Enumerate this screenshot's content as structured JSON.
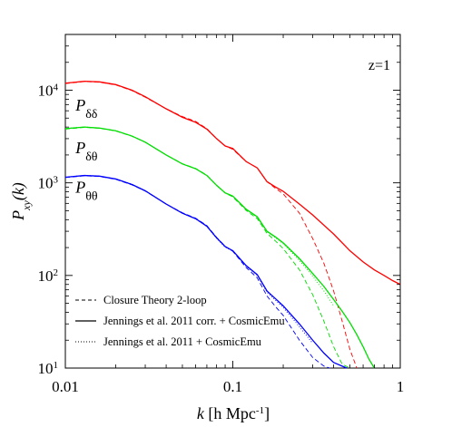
{
  "chart_data": {
    "type": "line",
    "title": "",
    "annotation": "z=1",
    "xlabel": {
      "italic": "k",
      "rest": " [h Mpc",
      "sup": "-1",
      "end": "]"
    },
    "ylabel": {
      "italic": "P",
      "sub": "xy",
      "rest": "(k)"
    },
    "x_scale": "log",
    "y_scale": "log",
    "xlim": [
      0.01,
      1
    ],
    "ylim": [
      10,
      40000
    ],
    "x_ticks": [
      {
        "value": 0.01,
        "label": "0.01"
      },
      {
        "value": 0.1,
        "label": "0.1"
      },
      {
        "value": 1,
        "label": "1"
      }
    ],
    "y_ticks": [
      {
        "value": 10,
        "base": "10",
        "exp": "1"
      },
      {
        "value": 100,
        "base": "10",
        "exp": "2"
      },
      {
        "value": 1000,
        "base": "10",
        "exp": "3"
      },
      {
        "value": 10000,
        "base": "10",
        "exp": "4"
      }
    ],
    "grid": false,
    "legend_position": "bottom-left",
    "legend": [
      {
        "label": "Closure Theory 2-loop",
        "style": "dashed"
      },
      {
        "label": "Jennings et al. 2011 corr. + CosmicEmu",
        "style": "solid"
      },
      {
        "label": "Jennings et al. 2011 + CosmicEmu",
        "style": "dotted"
      }
    ],
    "series_labels": [
      {
        "main": "P",
        "sub": "δδ",
        "color": "#ff0000",
        "at_k": 0.0115,
        "at_p": 6000
      },
      {
        "main": "P",
        "sub": "δθ",
        "color": "#00dd00",
        "at_k": 0.0115,
        "at_p": 2100
      },
      {
        "main": "P",
        "sub": "θθ",
        "color": "#0000ff",
        "at_k": 0.0115,
        "at_p": 780
      }
    ],
    "series": [
      {
        "group": "Pdd",
        "style": "solid",
        "color": "#ff0000",
        "x": [
          0.01,
          0.013,
          0.016,
          0.02,
          0.025,
          0.03,
          0.04,
          0.05,
          0.06,
          0.07,
          0.08,
          0.09,
          0.1,
          0.12,
          0.14,
          0.16,
          0.18,
          0.2,
          0.25,
          0.3,
          0.4,
          0.5,
          0.6,
          0.7,
          0.8,
          0.9,
          1.0
        ],
        "y": [
          11900,
          12500,
          12300,
          11500,
          10000,
          8500,
          6300,
          5100,
          4500,
          3800,
          3000,
          2500,
          2350,
          1700,
          1450,
          1030,
          900,
          810,
          590,
          450,
          280,
          185,
          140,
          115,
          100,
          88,
          80
        ]
      },
      {
        "group": "Pdd",
        "style": "dashed",
        "color": "#ff0000",
        "x": [
          0.01,
          0.013,
          0.016,
          0.02,
          0.025,
          0.03,
          0.04,
          0.05,
          0.06,
          0.07,
          0.08,
          0.09,
          0.1,
          0.12,
          0.14,
          0.16,
          0.18,
          0.2,
          0.25,
          0.3,
          0.35,
          0.4,
          0.45,
          0.5,
          0.55
        ],
        "y": [
          11800,
          12400,
          12200,
          11400,
          9900,
          8400,
          6300,
          5200,
          4600,
          3850,
          3000,
          2500,
          2300,
          1700,
          1450,
          1030,
          870,
          760,
          470,
          250,
          135,
          68,
          32,
          16,
          10
        ]
      },
      {
        "group": "Pdd",
        "style": "dotted",
        "color": "#ff0000",
        "x": [
          0.01,
          0.013,
          0.016,
          0.02,
          0.025,
          0.03,
          0.04,
          0.05,
          0.06,
          0.07,
          0.08,
          0.09,
          0.1,
          0.12,
          0.14,
          0.16,
          0.18,
          0.2,
          0.25,
          0.3
        ],
        "y": [
          11900,
          12500,
          12300,
          11500,
          10000,
          8500,
          6300,
          5100,
          4500,
          3800,
          3000,
          2500,
          2350,
          1700,
          1450,
          1030,
          900,
          810,
          590,
          450
        ]
      },
      {
        "group": "Pdt",
        "style": "solid",
        "color": "#00dd00",
        "x": [
          0.01,
          0.013,
          0.016,
          0.02,
          0.025,
          0.03,
          0.04,
          0.05,
          0.06,
          0.07,
          0.08,
          0.09,
          0.1,
          0.12,
          0.14,
          0.16,
          0.18,
          0.2,
          0.25,
          0.3,
          0.35,
          0.4,
          0.45,
          0.5,
          0.55,
          0.6,
          0.65,
          0.7
        ],
        "y": [
          3850,
          4000,
          3900,
          3650,
          3200,
          2750,
          2000,
          1600,
          1420,
          1200,
          940,
          780,
          720,
          520,
          430,
          300,
          260,
          225,
          152,
          105,
          76,
          55,
          41,
          31,
          23,
          17,
          12.5,
          10
        ]
      },
      {
        "group": "Pdt",
        "style": "dashed",
        "color": "#00dd00",
        "x": [
          0.01,
          0.013,
          0.016,
          0.02,
          0.025,
          0.03,
          0.04,
          0.05,
          0.06,
          0.07,
          0.08,
          0.09,
          0.1,
          0.12,
          0.14,
          0.16,
          0.18,
          0.2,
          0.25,
          0.3,
          0.35,
          0.4,
          0.45,
          0.5
        ],
        "y": [
          3800,
          3970,
          3880,
          3630,
          3180,
          2740,
          2000,
          1610,
          1430,
          1210,
          940,
          775,
          705,
          505,
          410,
          285,
          235,
          195,
          115,
          62,
          32,
          17,
          11,
          10
        ]
      },
      {
        "group": "Pdt",
        "style": "dotted",
        "color": "#00dd00",
        "x": [
          0.01,
          0.013,
          0.016,
          0.02,
          0.025,
          0.03,
          0.04,
          0.05,
          0.06,
          0.07,
          0.08,
          0.09,
          0.1,
          0.12,
          0.14,
          0.16,
          0.18,
          0.2,
          0.25,
          0.3,
          0.35,
          0.4
        ],
        "y": [
          3860,
          4010,
          3910,
          3660,
          3210,
          2760,
          2000,
          1600,
          1420,
          1195,
          935,
          775,
          715,
          515,
          425,
          295,
          255,
          220,
          145,
          98,
          68,
          47
        ]
      },
      {
        "group": "Ptt",
        "style": "solid",
        "color": "#0000ff",
        "x": [
          0.01,
          0.013,
          0.016,
          0.02,
          0.025,
          0.03,
          0.04,
          0.05,
          0.06,
          0.07,
          0.08,
          0.09,
          0.1,
          0.12,
          0.14,
          0.16,
          0.18,
          0.2,
          0.25,
          0.3,
          0.35,
          0.4,
          0.45,
          0.48
        ],
        "y": [
          1150,
          1200,
          1180,
          1100,
          960,
          820,
          590,
          470,
          410,
          340,
          255,
          205,
          185,
          128,
          102,
          68,
          56,
          47,
          30,
          20,
          14.5,
          11.5,
          10.5,
          10
        ]
      },
      {
        "group": "Ptt",
        "style": "dashed",
        "color": "#0000ff",
        "x": [
          0.01,
          0.013,
          0.016,
          0.02,
          0.025,
          0.03,
          0.04,
          0.05,
          0.06,
          0.07,
          0.08,
          0.09,
          0.1,
          0.12,
          0.14,
          0.16,
          0.18,
          0.2,
          0.25,
          0.3,
          0.35,
          0.38
        ],
        "y": [
          1140,
          1190,
          1170,
          1090,
          950,
          815,
          590,
          475,
          415,
          345,
          258,
          207,
          182,
          122,
          94,
          60,
          46,
          37,
          20,
          13,
          10.5,
          10
        ]
      },
      {
        "group": "Ptt",
        "style": "dotted",
        "color": "#0000ff",
        "x": [
          0.01,
          0.013,
          0.016,
          0.02,
          0.025,
          0.03,
          0.04,
          0.05,
          0.06,
          0.07,
          0.08,
          0.09,
          0.1,
          0.12,
          0.14,
          0.16,
          0.18,
          0.2,
          0.25,
          0.3
        ],
        "y": [
          1150,
          1205,
          1185,
          1105,
          965,
          825,
          590,
          468,
          408,
          338,
          252,
          202,
          183,
          126,
          100,
          66,
          54,
          45,
          28,
          18.5
        ]
      }
    ]
  }
}
